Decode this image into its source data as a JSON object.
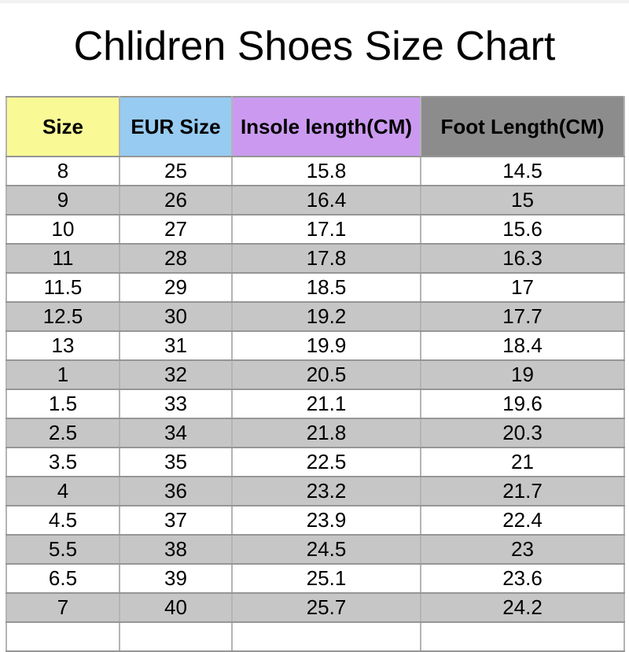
{
  "title": "Chlidren Shoes Size Chart",
  "table": {
    "headers": [
      {
        "label": "Size",
        "bg": "#f9f996"
      },
      {
        "label": "EUR Size",
        "bg": "#97cbf1"
      },
      {
        "label": "Insole length(CM)",
        "bg": "#cb9af0"
      },
      {
        "label": "Foot Length(CM)",
        "bg": "#8c8c8c"
      }
    ]
  },
  "colors": {
    "row_alt_bg": "#c6c6c6",
    "border_h": "#969696",
    "border_v": "#b4b4b4",
    "title_text": "#000000"
  },
  "chart_data": {
    "type": "table",
    "title": "Chlidren Shoes Size Chart",
    "columns": [
      "Size",
      "EUR Size",
      "Insole length(CM)",
      "Foot Length(CM)"
    ],
    "rows": [
      [
        "8",
        "25",
        "15.8",
        "14.5"
      ],
      [
        "9",
        "26",
        "16.4",
        "15"
      ],
      [
        "10",
        "27",
        "17.1",
        "15.6"
      ],
      [
        "11",
        "28",
        "17.8",
        "16.3"
      ],
      [
        "11.5",
        "29",
        "18.5",
        "17"
      ],
      [
        "12.5",
        "30",
        "19.2",
        "17.7"
      ],
      [
        "13",
        "31",
        "19.9",
        "18.4"
      ],
      [
        "1",
        "32",
        "20.5",
        "19"
      ],
      [
        "1.5",
        "33",
        "21.1",
        "19.6"
      ],
      [
        "2.5",
        "34",
        "21.8",
        "20.3"
      ],
      [
        "3.5",
        "35",
        "22.5",
        "21"
      ],
      [
        "4",
        "36",
        "23.2",
        "21.7"
      ],
      [
        "4.5",
        "37",
        "23.9",
        "22.4"
      ],
      [
        "5.5",
        "38",
        "24.5",
        "23"
      ],
      [
        "6.5",
        "39",
        "25.1",
        "23.6"
      ],
      [
        "7",
        "40",
        "25.7",
        "24.2"
      ],
      [
        "",
        "",
        "",
        ""
      ]
    ]
  }
}
